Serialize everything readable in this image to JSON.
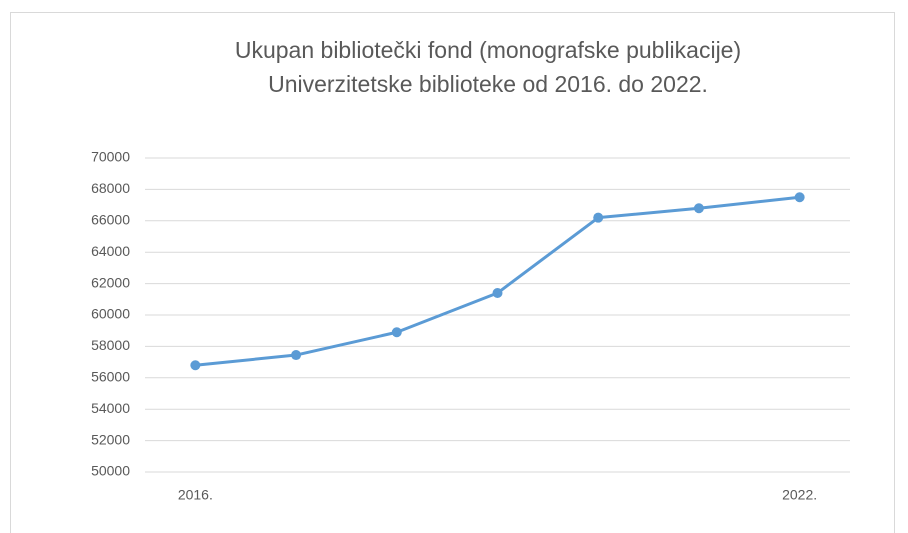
{
  "chart_data": {
    "type": "line",
    "title": [
      "Ukupan bibliotečki fond (monografske publikacije)",
      "Univerzitetske biblioteke od 2016. do 2022."
    ],
    "categories": [
      "2016.",
      null,
      null,
      null,
      null,
      null,
      "2022."
    ],
    "series": [
      {
        "name": "Ukupan bibliotečki fond",
        "color": "#5b9bd5",
        "values": [
          56800,
          57450,
          58900,
          61400,
          66200,
          66800,
          67500
        ]
      }
    ],
    "ylim": [
      50000,
      70000
    ],
    "yticks": [
      50000,
      52000,
      54000,
      56000,
      58000,
      60000,
      62000,
      64000,
      66000,
      68000,
      70000
    ],
    "grid": true
  }
}
